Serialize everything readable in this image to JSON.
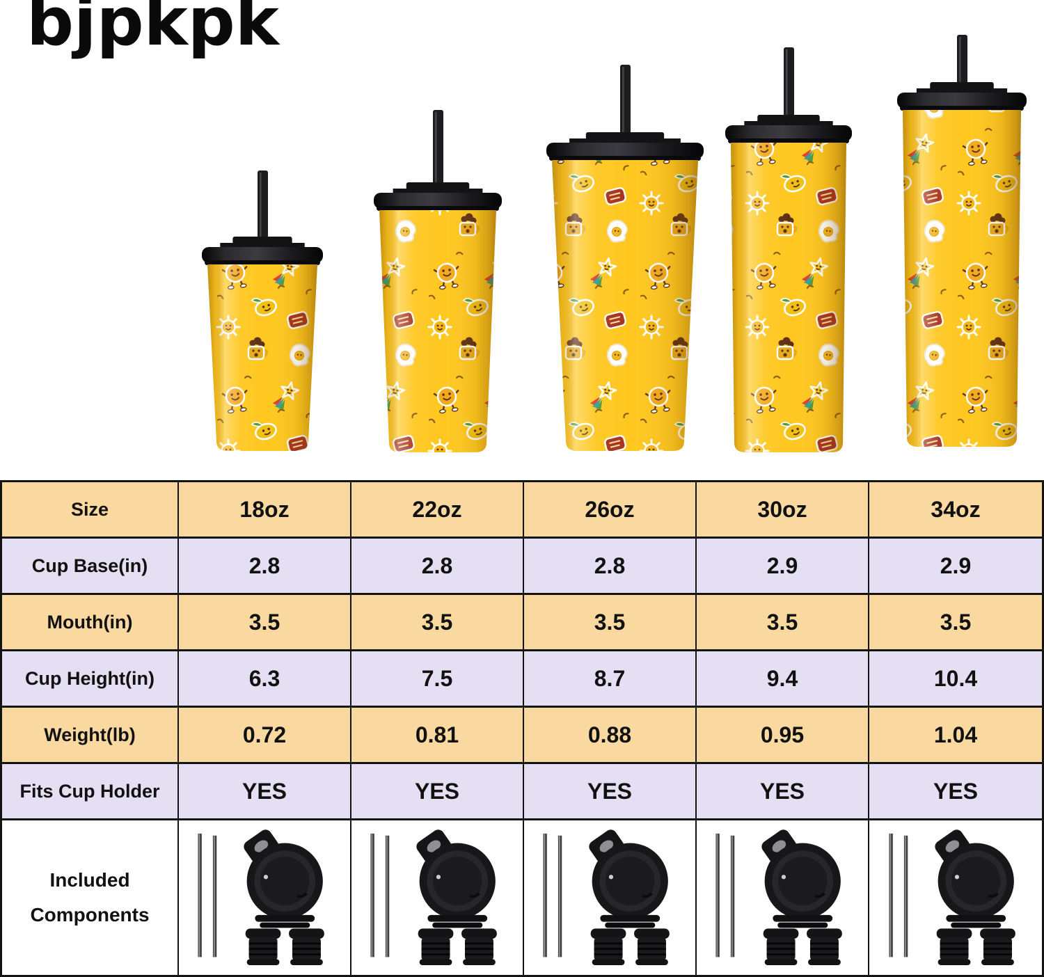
{
  "brand": {
    "logo_text": "bjpkpk"
  },
  "lineup": {
    "sizes": [
      "18oz",
      "22oz",
      "26oz",
      "30oz",
      "34oz"
    ]
  },
  "table": {
    "rows": [
      {
        "label": "Size",
        "values": [
          "18oz",
          "22oz",
          "26oz",
          "30oz",
          "34oz"
        ]
      },
      {
        "label": "Cup Base(in)",
        "values": [
          "2.8",
          "2.8",
          "2.8",
          "2.9",
          "2.9"
        ]
      },
      {
        "label": "Mouth(in)",
        "values": [
          "3.5",
          "3.5",
          "3.5",
          "3.5",
          "3.5"
        ]
      },
      {
        "label": "Cup Height(in)",
        "values": [
          "6.3",
          "7.5",
          "8.7",
          "9.4",
          "10.4"
        ]
      },
      {
        "label": "Weight(lb)",
        "values": [
          "0.72",
          "0.81",
          "0.88",
          "0.95",
          "1.04"
        ]
      },
      {
        "label": "Fits Cup Holder",
        "values": [
          "YES",
          "YES",
          "YES",
          "YES",
          "YES"
        ]
      },
      {
        "label": "Included Components"
      }
    ]
  },
  "included_components": {
    "icons": [
      "metal-straws-icon",
      "flip-lid-icon",
      "straw-stoppers-icon"
    ]
  },
  "colors": {
    "tumbler_yellow": "#FFC71F",
    "lid_black": "#141417",
    "row_peach": "#F9D9A0",
    "row_lavender": "#E4DFF2",
    "table_border": "#131313"
  }
}
